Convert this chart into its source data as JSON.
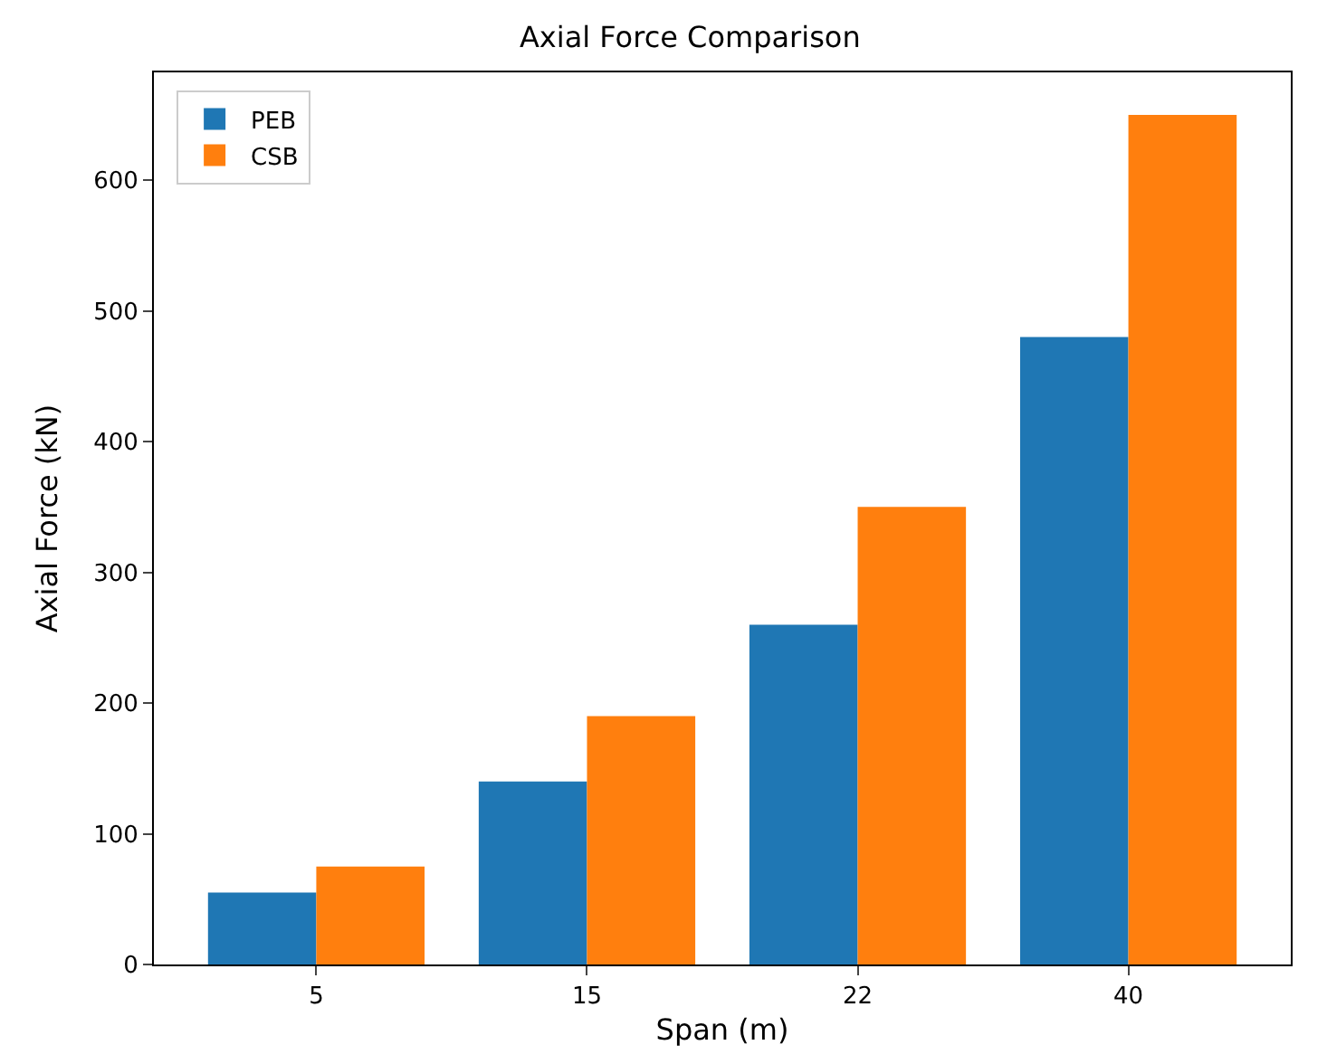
{
  "chart_data": {
    "type": "bar",
    "title": "Axial Force Comparison",
    "xlabel": "Span (m)",
    "ylabel": "Axial Force (kN)",
    "categories": [
      "5",
      "15",
      "22",
      "40"
    ],
    "series": [
      {
        "name": "PEB",
        "color": "#1f77b4",
        "values": [
          55,
          140,
          260,
          480
        ]
      },
      {
        "name": "CSB",
        "color": "#ff7f0e",
        "values": [
          75,
          190,
          350,
          650
        ]
      }
    ],
    "ylim": [
      0,
      682.5
    ],
    "yticks": [
      0,
      100,
      200,
      300,
      400,
      500,
      600
    ],
    "legend": "top left"
  }
}
